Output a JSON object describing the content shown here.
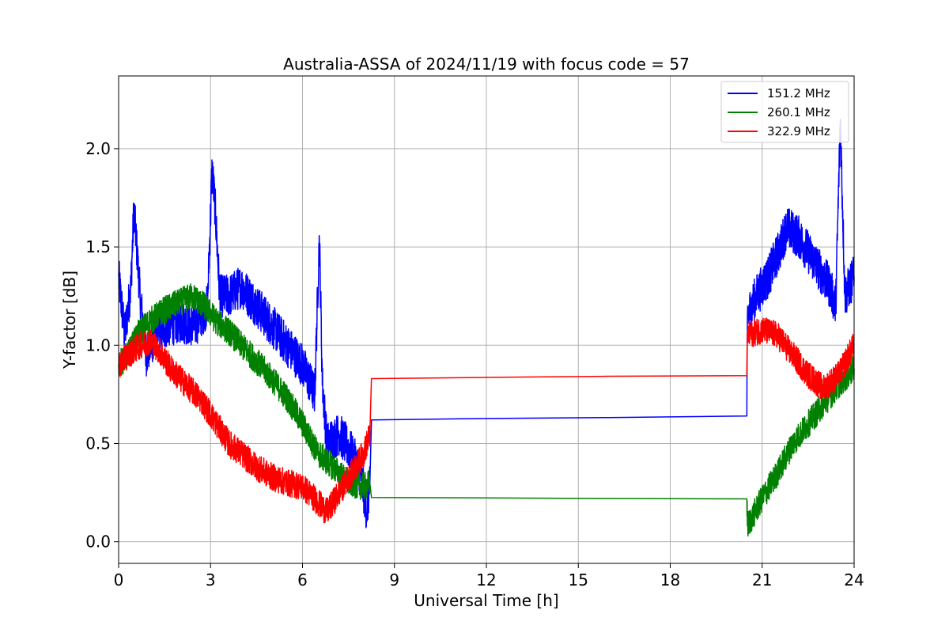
{
  "chart_data": {
    "type": "line",
    "title": "Australia-ASSA of 2024/11/19 with focus code = 57",
    "xlabel": "Universal Time [h]",
    "ylabel": "Y-factor [dB]",
    "xlim": [
      0,
      24
    ],
    "ylim": [
      -0.11,
      2.37
    ],
    "xticks": [
      0,
      3,
      6,
      9,
      12,
      15,
      18,
      21,
      24
    ],
    "xtick_labels": [
      "0",
      "3",
      "6",
      "9",
      "12",
      "15",
      "18",
      "21",
      "24"
    ],
    "yticks": [
      0.0,
      0.5,
      1.0,
      1.5,
      2.0
    ],
    "ytick_labels": [
      "0.0",
      "0.5",
      "1.0",
      "1.5",
      "2.0"
    ],
    "grid": true,
    "legend_position": "top-right",
    "series": [
      {
        "name": "151.2 MHz",
        "color": "#0000ff",
        "x": [
          0,
          0.2,
          0.4,
          0.5,
          0.7,
          0.9,
          1.2,
          1.6,
          2.0,
          2.5,
          2.9,
          3.05,
          3.15,
          3.3,
          3.6,
          4.0,
          4.5,
          5.0,
          5.5,
          6.0,
          6.4,
          6.55,
          6.65,
          6.8,
          7.2,
          7.6,
          7.9,
          8.1,
          8.2,
          8.25,
          12,
          16,
          20.5,
          20.52,
          20.8,
          21.2,
          21.6,
          21.8,
          22.2,
          22.8,
          23.2,
          23.4,
          23.55,
          23.7,
          23.85,
          24.0
        ],
        "y": [
          1.35,
          1.05,
          1.3,
          1.7,
          1.25,
          0.95,
          1.05,
          1.1,
          1.12,
          1.1,
          1.2,
          1.9,
          1.7,
          1.25,
          1.25,
          1.3,
          1.2,
          1.1,
          1.0,
          0.9,
          0.75,
          1.55,
          0.8,
          0.5,
          0.55,
          0.45,
          0.35,
          0.15,
          0.3,
          0.62,
          0.627,
          0.632,
          0.64,
          1.15,
          1.25,
          1.35,
          1.5,
          1.6,
          1.55,
          1.4,
          1.3,
          1.2,
          2.15,
          1.25,
          1.3,
          1.35
        ]
      },
      {
        "name": "260.1 MHz",
        "color": "#008000",
        "x": [
          0,
          0.3,
          0.6,
          1.0,
          1.5,
          2.0,
          2.4,
          2.8,
          3.2,
          3.6,
          4.0,
          4.5,
          5.0,
          5.5,
          6.0,
          6.5,
          7.0,
          7.5,
          8.0,
          8.2,
          8.25,
          12,
          16,
          20.5,
          20.52,
          21.0,
          21.5,
          22.0,
          22.5,
          23.0,
          23.5,
          24.0
        ],
        "y": [
          0.9,
          0.95,
          1.05,
          1.12,
          1.18,
          1.22,
          1.25,
          1.2,
          1.12,
          1.07,
          1.0,
          0.92,
          0.83,
          0.73,
          0.6,
          0.45,
          0.38,
          0.3,
          0.28,
          0.3,
          0.225,
          0.223,
          0.22,
          0.218,
          0.08,
          0.22,
          0.35,
          0.5,
          0.6,
          0.7,
          0.8,
          0.88
        ]
      },
      {
        "name": "322.9 MHz",
        "color": "#ff0000",
        "x": [
          0,
          0.3,
          0.7,
          1.0,
          1.3,
          1.7,
          2.2,
          2.7,
          3.2,
          3.6,
          4.0,
          4.5,
          5.0,
          5.5,
          6.0,
          6.4,
          6.8,
          7.2,
          7.6,
          8.0,
          8.2,
          8.25,
          12,
          16,
          20.5,
          20.52,
          21.0,
          21.5,
          22.0,
          22.5,
          23.0,
          23.5,
          24.0
        ],
        "y": [
          0.9,
          0.95,
          1.0,
          1.02,
          0.98,
          0.88,
          0.8,
          0.72,
          0.6,
          0.5,
          0.45,
          0.38,
          0.33,
          0.3,
          0.28,
          0.22,
          0.15,
          0.25,
          0.35,
          0.45,
          0.55,
          0.83,
          0.836,
          0.842,
          0.845,
          1.05,
          1.08,
          1.05,
          0.95,
          0.85,
          0.78,
          0.85,
          1.0
        ]
      }
    ]
  }
}
